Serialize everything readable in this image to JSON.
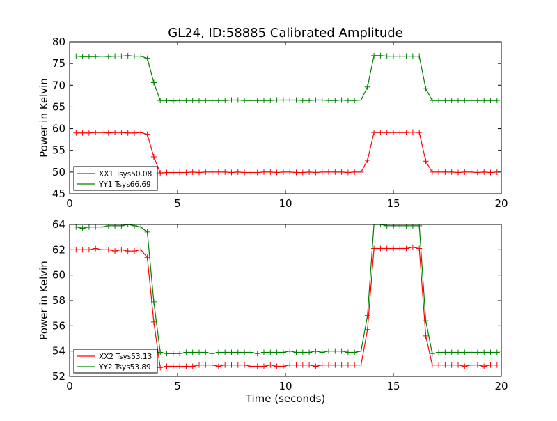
{
  "title": "GL24, ID:58885 Calibrated Amplitude",
  "colors": {
    "red": "#ff0000",
    "green": "#008000"
  },
  "chart_data": [
    {
      "type": "line",
      "xlabel": "",
      "ylabel": "Power in Kelvin",
      "xlim": [
        0,
        20
      ],
      "ylim": [
        45,
        80
      ],
      "xticks": [
        0,
        5,
        10,
        15,
        20
      ],
      "yticks": [
        45,
        50,
        55,
        60,
        65,
        70,
        75,
        80
      ],
      "grid": false,
      "legend_position": "lower-left",
      "x": [
        0.3,
        0.6,
        0.9,
        1.2,
        1.5,
        1.8,
        2.1,
        2.4,
        2.7,
        3.0,
        3.3,
        3.6,
        3.9,
        4.2,
        4.5,
        4.8,
        5.1,
        5.4,
        5.7,
        6.0,
        6.3,
        6.6,
        6.9,
        7.2,
        7.5,
        7.8,
        8.1,
        8.4,
        8.7,
        9.0,
        9.3,
        9.6,
        9.9,
        10.2,
        10.5,
        10.8,
        11.1,
        11.4,
        11.7,
        12.0,
        12.3,
        12.6,
        12.9,
        13.2,
        13.5,
        13.8,
        14.1,
        14.4,
        14.7,
        15.0,
        15.3,
        15.6,
        15.9,
        16.2,
        16.5,
        16.8,
        17.1,
        17.4,
        17.7,
        18.0,
        18.3,
        18.6,
        18.9,
        19.2,
        19.5,
        19.8
      ],
      "series": [
        {
          "name": "XX1 Tsys50.08",
          "color": "#ff0000",
          "values": [
            59.0,
            59.0,
            59.0,
            59.1,
            59.1,
            59.0,
            59.1,
            59.1,
            59.0,
            59.0,
            59.1,
            58.7,
            53.5,
            49.8,
            49.9,
            49.9,
            49.9,
            49.9,
            50.0,
            49.9,
            50.0,
            50.0,
            50.0,
            50.0,
            49.9,
            50.0,
            49.9,
            49.9,
            49.9,
            50.0,
            50.0,
            49.9,
            50.0,
            50.0,
            49.9,
            49.9,
            50.0,
            49.9,
            50.0,
            50.0,
            50.0,
            50.0,
            49.9,
            50.0,
            50.0,
            52.7,
            59.1,
            59.1,
            59.1,
            59.1,
            59.1,
            59.1,
            59.2,
            59.1,
            52.5,
            50.0,
            50.0,
            50.0,
            50.0,
            49.9,
            50.0,
            50.0,
            49.9,
            50.0,
            49.9,
            50.0
          ]
        },
        {
          "name": "YY1 Tsys66.69",
          "color": "#008000",
          "values": [
            76.7,
            76.6,
            76.6,
            76.6,
            76.7,
            76.6,
            76.7,
            76.7,
            76.8,
            76.7,
            76.7,
            76.2,
            70.6,
            66.5,
            66.5,
            66.4,
            66.5,
            66.5,
            66.5,
            66.5,
            66.5,
            66.5,
            66.5,
            66.5,
            66.6,
            66.6,
            66.5,
            66.5,
            66.5,
            66.5,
            66.5,
            66.6,
            66.6,
            66.6,
            66.6,
            66.5,
            66.5,
            66.6,
            66.6,
            66.5,
            66.5,
            66.6,
            66.5,
            66.5,
            66.6,
            69.6,
            76.8,
            76.8,
            76.7,
            76.7,
            76.7,
            76.7,
            76.7,
            76.7,
            69.2,
            66.5,
            66.5,
            66.5,
            66.5,
            66.5,
            66.5,
            66.5,
            66.5,
            66.5,
            66.5,
            66.5
          ]
        }
      ]
    },
    {
      "type": "line",
      "xlabel": "Time (seconds)",
      "ylabel": "Power in Kelvin",
      "xlim": [
        0,
        20
      ],
      "ylim": [
        52,
        64
      ],
      "xticks": [
        0,
        5,
        10,
        15,
        20
      ],
      "yticks": [
        52,
        54,
        56,
        58,
        60,
        62,
        64
      ],
      "grid": false,
      "legend_position": "lower-left",
      "x": [
        0.3,
        0.6,
        0.9,
        1.2,
        1.5,
        1.8,
        2.1,
        2.4,
        2.7,
        3.0,
        3.3,
        3.6,
        3.9,
        4.2,
        4.5,
        4.8,
        5.1,
        5.4,
        5.7,
        6.0,
        6.3,
        6.6,
        6.9,
        7.2,
        7.5,
        7.8,
        8.1,
        8.4,
        8.7,
        9.0,
        9.3,
        9.6,
        9.9,
        10.2,
        10.5,
        10.8,
        11.1,
        11.4,
        11.7,
        12.0,
        12.3,
        12.6,
        12.9,
        13.2,
        13.5,
        13.8,
        14.1,
        14.4,
        14.7,
        15.0,
        15.3,
        15.6,
        15.9,
        16.2,
        16.5,
        16.8,
        17.1,
        17.4,
        17.7,
        18.0,
        18.3,
        18.6,
        18.9,
        19.2,
        19.5,
        19.8
      ],
      "series": [
        {
          "name": "XX2 Tsys53.13",
          "color": "#ff0000",
          "values": [
            62.0,
            62.0,
            62.0,
            62.1,
            62.0,
            62.0,
            61.9,
            62.0,
            61.9,
            61.9,
            62.0,
            61.4,
            56.3,
            52.7,
            52.8,
            52.8,
            52.8,
            52.8,
            52.8,
            52.9,
            52.9,
            52.9,
            52.8,
            52.9,
            52.9,
            52.9,
            52.9,
            52.8,
            52.8,
            52.8,
            52.9,
            52.8,
            52.8,
            52.9,
            52.9,
            52.9,
            52.9,
            52.8,
            52.9,
            52.9,
            52.9,
            52.9,
            52.9,
            52.9,
            52.9,
            55.7,
            62.1,
            62.1,
            62.1,
            62.1,
            62.1,
            62.1,
            62.2,
            62.1,
            55.2,
            52.9,
            52.9,
            52.9,
            52.9,
            52.9,
            52.8,
            52.9,
            52.9,
            52.8,
            52.9,
            52.9
          ]
        },
        {
          "name": "YY2 Tsys53.89",
          "color": "#008000",
          "values": [
            63.8,
            63.7,
            63.8,
            63.8,
            63.8,
            63.9,
            63.9,
            63.9,
            64.0,
            63.9,
            63.8,
            63.4,
            57.9,
            53.9,
            53.8,
            53.8,
            53.8,
            53.9,
            53.9,
            53.9,
            53.9,
            53.8,
            53.9,
            53.9,
            53.9,
            53.9,
            53.9,
            53.9,
            53.8,
            53.9,
            53.9,
            53.9,
            53.9,
            54.0,
            53.9,
            53.9,
            53.9,
            54.0,
            53.9,
            54.0,
            54.0,
            54.0,
            53.9,
            53.9,
            54.0,
            56.8,
            64.0,
            64.0,
            63.9,
            63.9,
            63.9,
            63.9,
            63.9,
            63.9,
            56.4,
            53.8,
            53.9,
            53.9,
            53.9,
            53.9,
            53.9,
            53.9,
            53.9,
            53.9,
            53.9,
            53.9
          ]
        }
      ]
    }
  ]
}
